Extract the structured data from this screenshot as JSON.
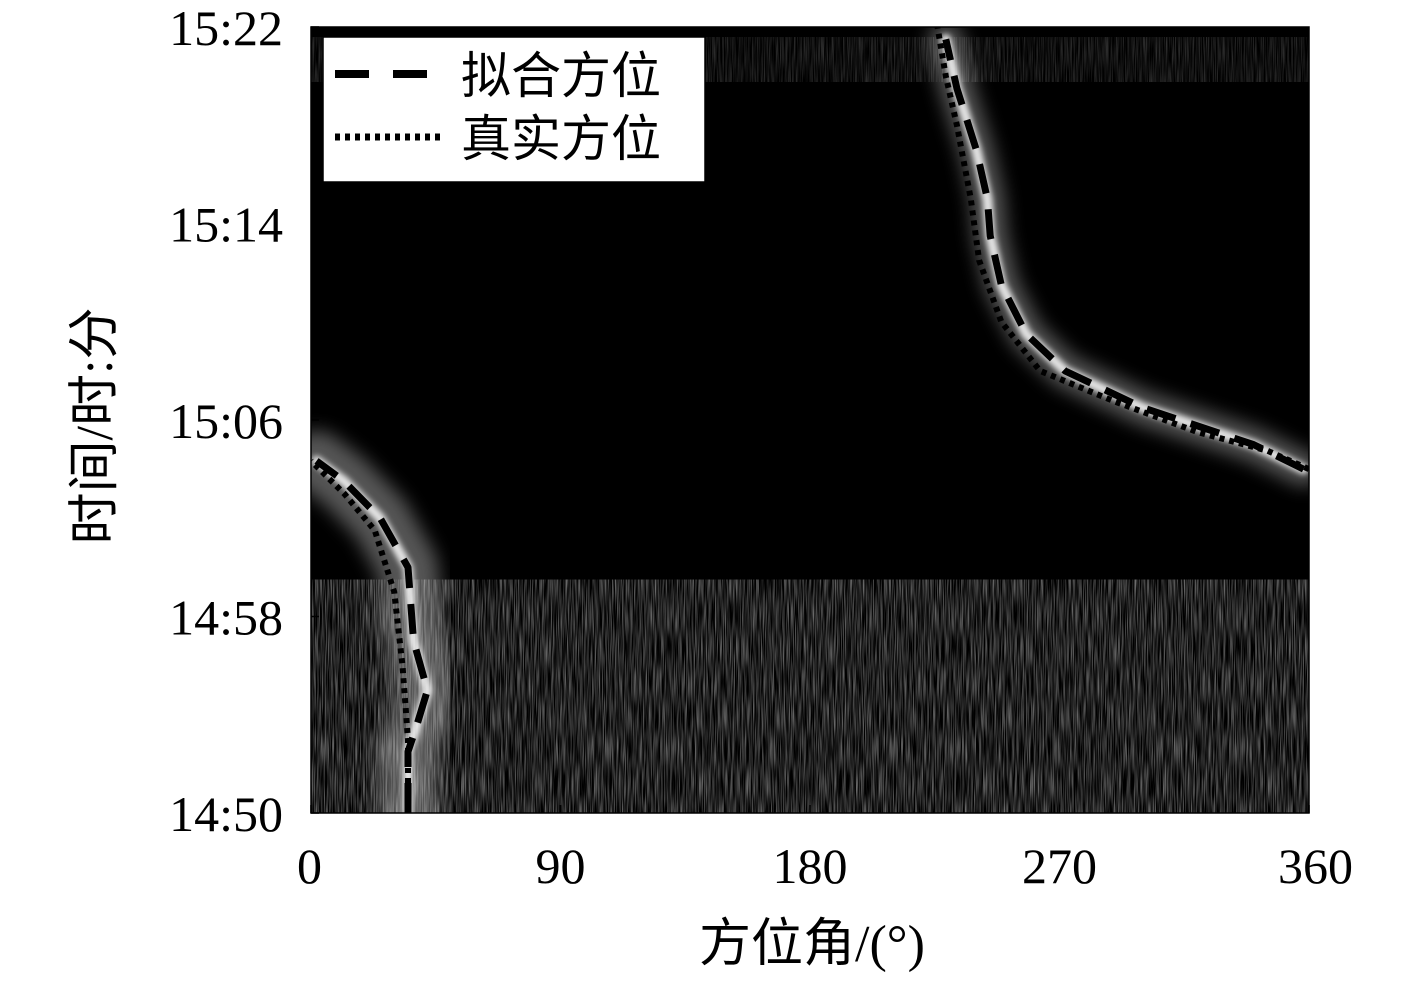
{
  "chart_data": {
    "type": "line",
    "background": "spectrogram",
    "title": "",
    "xlabel": "方位角/(°)",
    "ylabel": "时间/时:分",
    "xlim": [
      0,
      360
    ],
    "ylim": [
      "14:50",
      "15:22"
    ],
    "x_ticks": [
      "0",
      "90",
      "180",
      "270",
      "360"
    ],
    "y_ticks": [
      "14:50",
      "14:58",
      "15:06",
      "15:14",
      "15:22"
    ],
    "grid": false,
    "legend": {
      "position": "top-left",
      "entries": [
        {
          "label": "拟合方位",
          "style": "dashed"
        },
        {
          "label": "真实方位",
          "style": "dotted"
        }
      ]
    },
    "series": [
      {
        "name": "拟合方位",
        "style": "dashed",
        "segments": [
          [
            {
              "x": 35,
              "y": "14:50:00"
            },
            {
              "x": 35,
              "y": "14:52:30"
            },
            {
              "x": 38,
              "y": "14:53:30"
            },
            {
              "x": 42,
              "y": "14:55:00"
            },
            {
              "x": 37,
              "y": "14:57:00"
            },
            {
              "x": 35,
              "y": "15:00:00"
            },
            {
              "x": 25,
              "y": "15:02:00"
            },
            {
              "x": 12,
              "y": "15:03:30"
            },
            {
              "x": 2,
              "y": "15:04:20"
            }
          ],
          [
            {
              "x": 358,
              "y": "15:04:00"
            },
            {
              "x": 340,
              "y": "15:05:00"
            },
            {
              "x": 300,
              "y": "15:06:30"
            },
            {
              "x": 272,
              "y": "15:08:00"
            },
            {
              "x": 258,
              "y": "15:09:30"
            },
            {
              "x": 249,
              "y": "15:11:30"
            },
            {
              "x": 245,
              "y": "15:13:30"
            },
            {
              "x": 244,
              "y": "15:15:00"
            },
            {
              "x": 240,
              "y": "15:17:00"
            },
            {
              "x": 233,
              "y": "15:19:30"
            },
            {
              "x": 229,
              "y": "15:21:30"
            }
          ]
        ]
      },
      {
        "name": "真实方位",
        "style": "dotted",
        "segments": [
          [
            {
              "x": 35,
              "y": "14:50:00"
            },
            {
              "x": 35,
              "y": "14:53:00"
            },
            {
              "x": 33,
              "y": "14:56:00"
            },
            {
              "x": 30,
              "y": "14:59:00"
            },
            {
              "x": 23,
              "y": "15:01:30"
            },
            {
              "x": 12,
              "y": "15:03:00"
            },
            {
              "x": 0,
              "y": "15:04:20"
            }
          ],
          [
            {
              "x": 360,
              "y": "15:04:00"
            },
            {
              "x": 345,
              "y": "15:04:45"
            },
            {
              "x": 320,
              "y": "15:05:30"
            },
            {
              "x": 290,
              "y": "15:06:45"
            },
            {
              "x": 263,
              "y": "15:08:00"
            },
            {
              "x": 249,
              "y": "15:10:00"
            },
            {
              "x": 241,
              "y": "15:12:30"
            },
            {
              "x": 238,
              "y": "15:15:00"
            },
            {
              "x": 233,
              "y": "15:18:00"
            },
            {
              "x": 229,
              "y": "15:20:00"
            },
            {
              "x": 226,
              "y": "15:22:00"
            }
          ]
        ]
      }
    ]
  }
}
